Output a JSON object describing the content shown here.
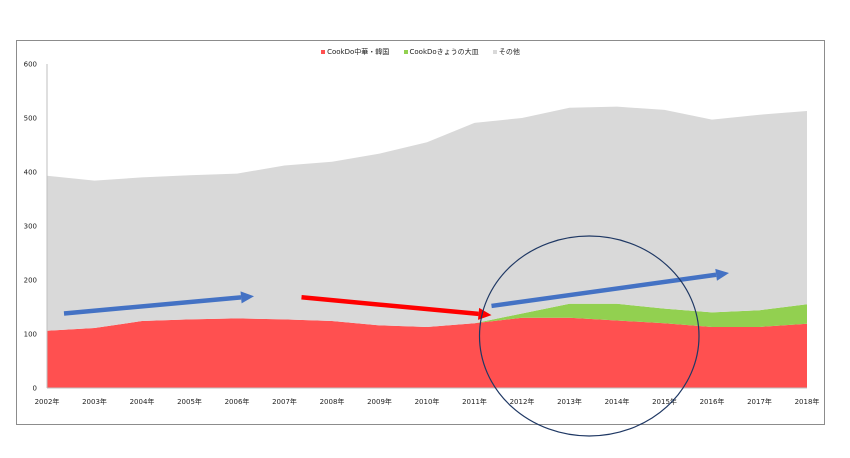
{
  "chart_data": {
    "type": "area",
    "stacked": true,
    "categories": [
      "2002年",
      "2003年",
      "2004年",
      "2005年",
      "2006年",
      "2007年",
      "2008年",
      "2009年",
      "2010年",
      "2011年",
      "2012年",
      "2013年",
      "2014年",
      "2015年",
      "2016年",
      "2017年",
      "2018年"
    ],
    "series": [
      {
        "name": "CookDo中華・韓国",
        "color": "#ff5050",
        "values": [
          106,
          111,
          124,
          127,
          129,
          127,
          124,
          116,
          113,
          120,
          130,
          130,
          125,
          120,
          113,
          113,
          119
        ]
      },
      {
        "name": "CookDoきょうの大皿",
        "color": "#92d050",
        "values": [
          0,
          0,
          0,
          0,
          0,
          0,
          0,
          0,
          0,
          0,
          8,
          26,
          31,
          27,
          27,
          31,
          36
        ]
      },
      {
        "name": "その他",
        "color": "#d9d9d9",
        "values": [
          287,
          273,
          266,
          267,
          268,
          285,
          295,
          318,
          342,
          371,
          362,
          363,
          365,
          368,
          357,
          362,
          358
        ]
      }
    ],
    "ylim": [
      0,
      600
    ],
    "yticks": [
      0,
      100,
      200,
      300,
      400,
      500,
      600
    ],
    "legend_position": "top",
    "grid": false,
    "annotations": [
      {
        "type": "arrow",
        "color": "#4472c4",
        "from": [
          "2002年",
          138
        ],
        "to": [
          "2006年",
          170
        ]
      },
      {
        "type": "arrow",
        "color": "#ff0000",
        "from": [
          "2007年",
          168
        ],
        "to": [
          "2011年",
          135
        ]
      },
      {
        "type": "arrow",
        "color": "#4472c4",
        "from": [
          "2011年",
          152
        ],
        "to": [
          "2016年",
          213
        ]
      },
      {
        "type": "ellipse",
        "color": "#1f3864",
        "around": [
          "2011年",
          "2016年"
        ]
      }
    ]
  }
}
